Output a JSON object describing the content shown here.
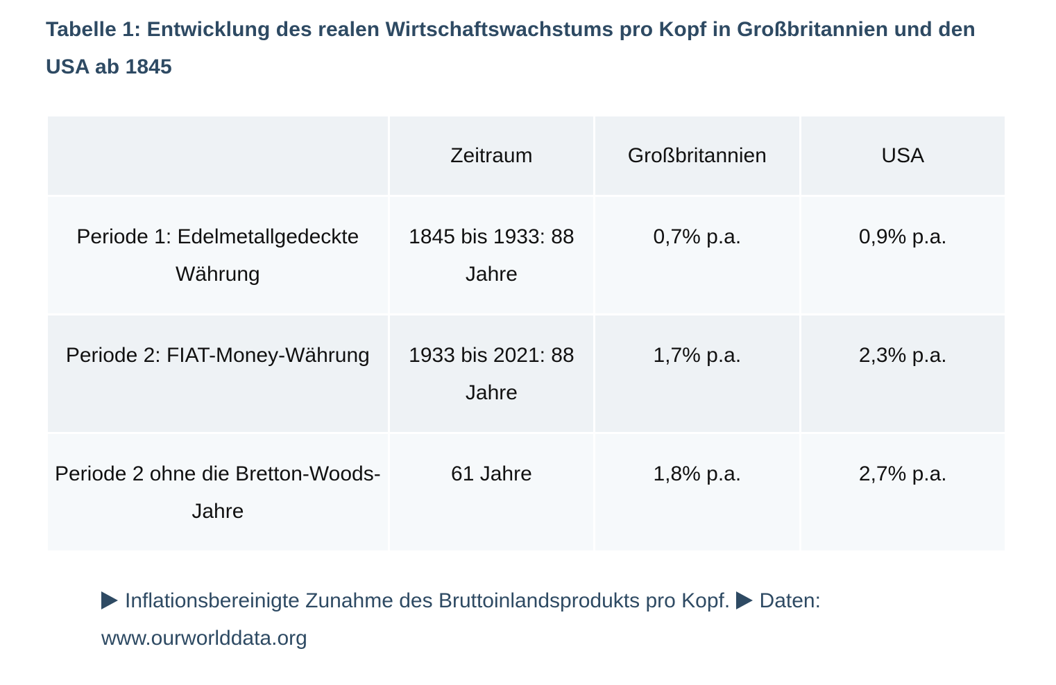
{
  "table_caption": "Tabelle 1: Entwicklung des realen Wirtschaftswachstums pro Kopf  in Großbritannien und den USA ab 1845",
  "table": {
    "headers": [
      "",
      "Zeitraum",
      "Großbritannien",
      "USA"
    ],
    "rows": [
      [
        "Periode 1: Edelmetallgedeckte Währung",
        "1845 bis 1933: 88 Jahre",
        "0,7% p.a.",
        "0,9% p.a."
      ],
      [
        "Periode 2: FIAT-Money-Währung",
        "1933 bis 2021: 88 Jahre",
        "1,7% p.a.",
        "2,3% p.a."
      ],
      [
        "Periode 2 ohne die Bretton-Woods-Jahre",
        "61 Jahre",
        "1,8% p.a.",
        "2,7% p.a."
      ]
    ]
  },
  "footnote": {
    "note_text": "Inflationsbereinigte Zunahme des Bruttoinlandsprodukts pro Kopf.",
    "source_label": "Daten:",
    "source_url": "www.ourworlddata.org",
    "marker_icon": "triangle-right-icon"
  },
  "colors": {
    "caption": "#2e4a63",
    "header_bg": "#eef2f5",
    "row_light_bg": "#f6f9fb",
    "row_dark_bg": "#eef2f5"
  }
}
